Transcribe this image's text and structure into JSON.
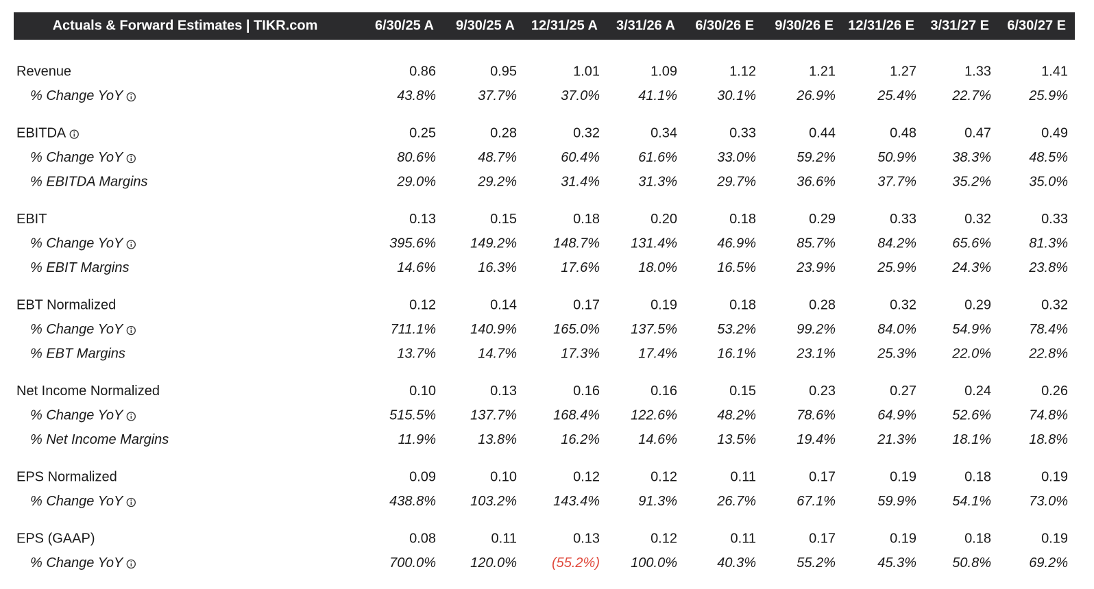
{
  "table": {
    "title": "Actuals & Forward Estimates | TIKR.com",
    "columns": [
      "6/30/25 A",
      "9/30/25 A",
      "12/31/25 A",
      "3/31/26 A",
      "6/30/26 E",
      "9/30/26 E",
      "12/31/26 E",
      "3/31/27 E",
      "6/30/27 E"
    ],
    "groups": [
      {
        "rows": [
          {
            "label": "Revenue",
            "info": false,
            "cells": [
              "0.86",
              "0.95",
              "1.01",
              "1.09",
              "1.12",
              "1.21",
              "1.27",
              "1.33",
              "1.41"
            ]
          },
          {
            "label": "% Change YoY",
            "info": true,
            "cells": [
              "43.8%",
              "37.7%",
              "37.0%",
              "41.1%",
              "30.1%",
              "26.9%",
              "25.4%",
              "22.7%",
              "25.9%"
            ]
          }
        ]
      },
      {
        "rows": [
          {
            "label": "EBITDA",
            "info": true,
            "cells": [
              "0.25",
              "0.28",
              "0.32",
              "0.34",
              "0.33",
              "0.44",
              "0.48",
              "0.47",
              "0.49"
            ]
          },
          {
            "label": "% Change YoY",
            "info": true,
            "cells": [
              "80.6%",
              "48.7%",
              "60.4%",
              "61.6%",
              "33.0%",
              "59.2%",
              "50.9%",
              "38.3%",
              "48.5%"
            ]
          },
          {
            "label": "% EBITDA Margins",
            "info": false,
            "cells": [
              "29.0%",
              "29.2%",
              "31.4%",
              "31.3%",
              "29.7%",
              "36.6%",
              "37.7%",
              "35.2%",
              "35.0%"
            ]
          }
        ]
      },
      {
        "rows": [
          {
            "label": "EBIT",
            "info": false,
            "cells": [
              "0.13",
              "0.15",
              "0.18",
              "0.20",
              "0.18",
              "0.29",
              "0.33",
              "0.32",
              "0.33"
            ]
          },
          {
            "label": "% Change YoY",
            "info": true,
            "cells": [
              "395.6%",
              "149.2%",
              "148.7%",
              "131.4%",
              "46.9%",
              "85.7%",
              "84.2%",
              "65.6%",
              "81.3%"
            ]
          },
          {
            "label": "% EBIT Margins",
            "info": false,
            "cells": [
              "14.6%",
              "16.3%",
              "17.6%",
              "18.0%",
              "16.5%",
              "23.9%",
              "25.9%",
              "24.3%",
              "23.8%"
            ]
          }
        ]
      },
      {
        "rows": [
          {
            "label": "EBT Normalized",
            "info": false,
            "cells": [
              "0.12",
              "0.14",
              "0.17",
              "0.19",
              "0.18",
              "0.28",
              "0.32",
              "0.29",
              "0.32"
            ]
          },
          {
            "label": "% Change YoY",
            "info": true,
            "cells": [
              "711.1%",
              "140.9%",
              "165.0%",
              "137.5%",
              "53.2%",
              "99.2%",
              "84.0%",
              "54.9%",
              "78.4%"
            ]
          },
          {
            "label": "% EBT Margins",
            "info": false,
            "cells": [
              "13.7%",
              "14.7%",
              "17.3%",
              "17.4%",
              "16.1%",
              "23.1%",
              "25.3%",
              "22.0%",
              "22.8%"
            ]
          }
        ]
      },
      {
        "rows": [
          {
            "label": "Net Income Normalized",
            "info": false,
            "cells": [
              "0.10",
              "0.13",
              "0.16",
              "0.16",
              "0.15",
              "0.23",
              "0.27",
              "0.24",
              "0.26"
            ]
          },
          {
            "label": "% Change YoY",
            "info": true,
            "cells": [
              "515.5%",
              "137.7%",
              "168.4%",
              "122.6%",
              "48.2%",
              "78.6%",
              "64.9%",
              "52.6%",
              "74.8%"
            ]
          },
          {
            "label": "% Net Income Margins",
            "info": false,
            "cells": [
              "11.9%",
              "13.8%",
              "16.2%",
              "14.6%",
              "13.5%",
              "19.4%",
              "21.3%",
              "18.1%",
              "18.8%"
            ]
          }
        ]
      },
      {
        "rows": [
          {
            "label": "EPS Normalized",
            "info": false,
            "cells": [
              "0.09",
              "0.10",
              "0.12",
              "0.12",
              "0.11",
              "0.17",
              "0.19",
              "0.18",
              "0.19"
            ]
          },
          {
            "label": "% Change YoY",
            "info": true,
            "cells": [
              "438.8%",
              "103.2%",
              "143.4%",
              "91.3%",
              "26.7%",
              "67.1%",
              "59.9%",
              "54.1%",
              "73.0%"
            ]
          }
        ]
      },
      {
        "rows": [
          {
            "label": "EPS (GAAP)",
            "info": false,
            "cells": [
              "0.08",
              "0.11",
              "0.13",
              "0.12",
              "0.11",
              "0.17",
              "0.19",
              "0.18",
              "0.19"
            ]
          },
          {
            "label": "% Change YoY",
            "info": true,
            "cells": [
              "700.0%",
              "120.0%",
              "(55.2%)",
              "100.0%",
              "40.3%",
              "55.2%",
              "45.3%",
              "50.8%",
              "69.2%"
            ]
          }
        ]
      }
    ]
  }
}
